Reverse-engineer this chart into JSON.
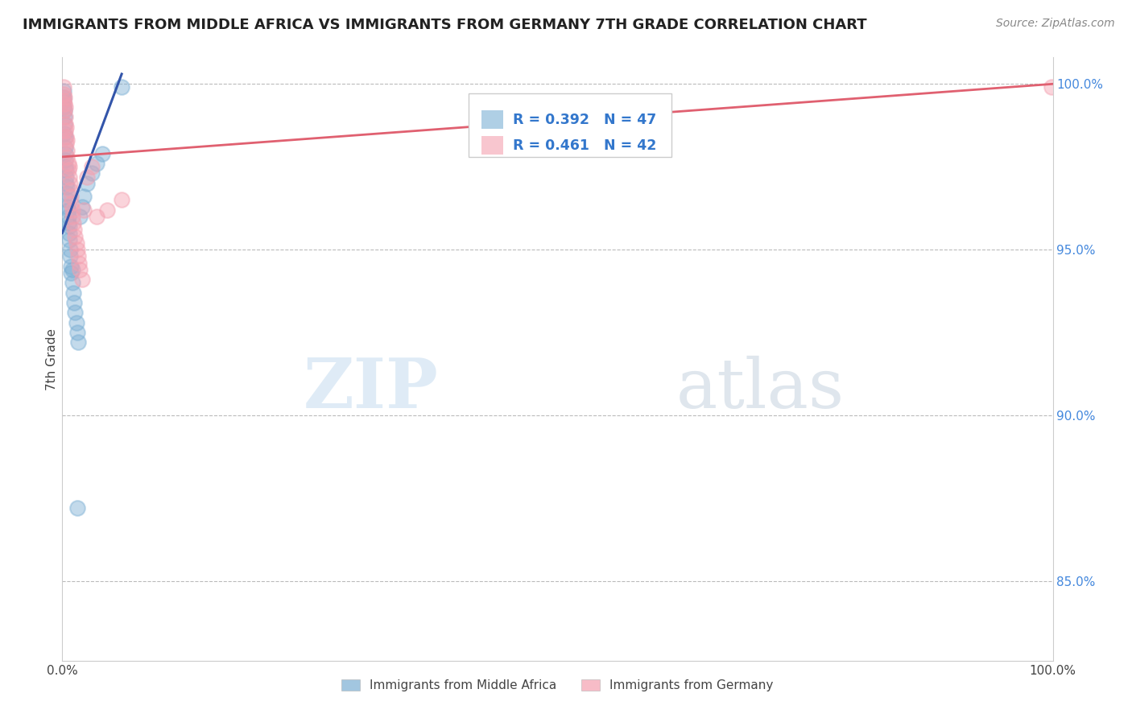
{
  "title": "IMMIGRANTS FROM MIDDLE AFRICA VS IMMIGRANTS FROM GERMANY 7TH GRADE CORRELATION CHART",
  "source": "Source: ZipAtlas.com",
  "ylabel": "7th Grade",
  "legend1_label": "Immigrants from Middle Africa",
  "legend2_label": "Immigrants from Germany",
  "R_blue": 0.392,
  "N_blue": 47,
  "R_pink": 0.461,
  "N_pink": 42,
  "blue_color": "#7BAFD4",
  "pink_color": "#F4A0B0",
  "blue_line_color": "#3355AA",
  "pink_line_color": "#E06070",
  "ytick_labels": [
    "85.0%",
    "90.0%",
    "95.0%",
    "100.0%"
  ],
  "ytick_values": [
    0.85,
    0.9,
    0.95,
    1.0
  ],
  "xlim": [
    0.0,
    1.0
  ],
  "ylim": [
    0.826,
    1.008
  ],
  "blue_x": [
    0.001,
    0.001,
    0.001,
    0.001,
    0.002,
    0.002,
    0.002,
    0.002,
    0.003,
    0.003,
    0.003,
    0.003,
    0.003,
    0.004,
    0.004,
    0.004,
    0.005,
    0.005,
    0.005,
    0.005,
    0.006,
    0.006,
    0.006,
    0.007,
    0.007,
    0.007,
    0.008,
    0.008,
    0.009,
    0.009,
    0.01,
    0.01,
    0.011,
    0.012,
    0.013,
    0.014,
    0.015,
    0.016,
    0.018,
    0.02,
    0.022,
    0.025,
    0.03,
    0.035,
    0.04,
    0.06,
    0.015
  ],
  "blue_y": [
    0.998,
    0.995,
    0.993,
    0.996,
    0.99,
    0.988,
    0.985,
    0.992,
    0.981,
    0.979,
    0.984,
    0.977,
    0.975,
    0.972,
    0.97,
    0.974,
    0.967,
    0.965,
    0.963,
    0.969,
    0.96,
    0.958,
    0.962,
    0.955,
    0.953,
    0.957,
    0.95,
    0.948,
    0.945,
    0.943,
    0.94,
    0.944,
    0.937,
    0.934,
    0.931,
    0.928,
    0.925,
    0.922,
    0.96,
    0.963,
    0.966,
    0.97,
    0.973,
    0.976,
    0.979,
    0.999,
    0.872
  ],
  "pink_x": [
    0.001,
    0.001,
    0.001,
    0.002,
    0.002,
    0.002,
    0.003,
    0.003,
    0.003,
    0.003,
    0.004,
    0.004,
    0.004,
    0.005,
    0.005,
    0.005,
    0.006,
    0.006,
    0.007,
    0.007,
    0.008,
    0.008,
    0.009,
    0.009,
    0.01,
    0.01,
    0.011,
    0.012,
    0.013,
    0.014,
    0.015,
    0.016,
    0.017,
    0.018,
    0.02,
    0.022,
    0.025,
    0.03,
    0.035,
    0.045,
    0.06,
    0.999
  ],
  "pink_y": [
    0.999,
    0.997,
    0.995,
    0.994,
    0.996,
    0.992,
    0.99,
    0.993,
    0.988,
    0.986,
    0.984,
    0.987,
    0.982,
    0.98,
    0.978,
    0.983,
    0.976,
    0.974,
    0.972,
    0.975,
    0.97,
    0.968,
    0.966,
    0.964,
    0.962,
    0.96,
    0.958,
    0.956,
    0.954,
    0.952,
    0.95,
    0.948,
    0.946,
    0.944,
    0.941,
    0.962,
    0.972,
    0.975,
    0.96,
    0.962,
    0.965,
    0.999
  ],
  "blue_line_x0": 0.0,
  "blue_line_y0": 0.955,
  "blue_line_x1": 0.06,
  "blue_line_y1": 1.003,
  "pink_line_x0": 0.0,
  "pink_line_y0": 0.978,
  "pink_line_x1": 1.0,
  "pink_line_y1": 1.0
}
